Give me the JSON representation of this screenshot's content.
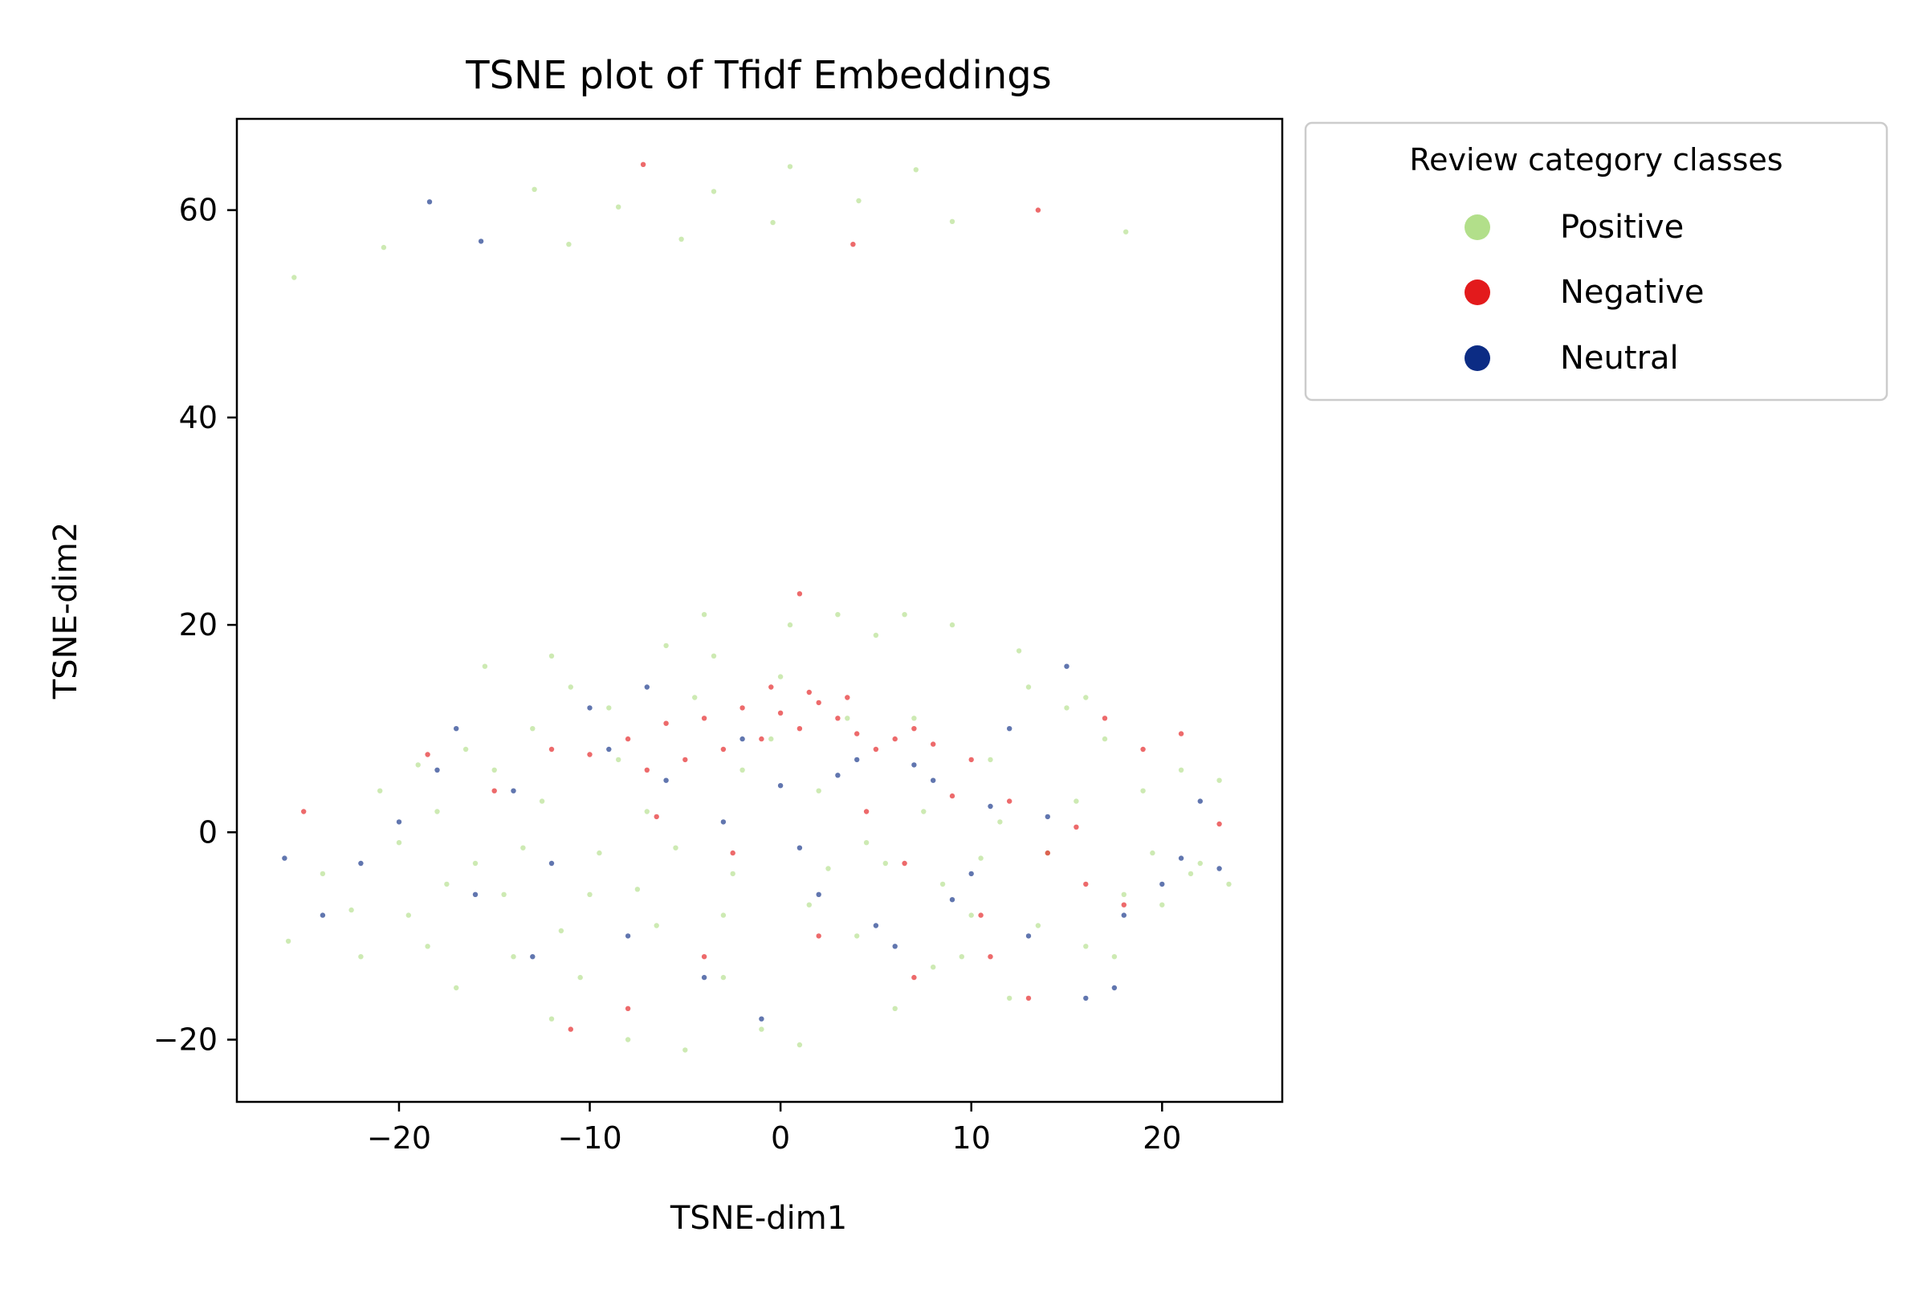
{
  "chart_data": {
    "type": "scatter",
    "title": "TSNE plot of Tfidf Embeddings",
    "xlabel": "TSNE-dim1",
    "ylabel": "TSNE-dim2",
    "xlim": [
      -28.5,
      26.3
    ],
    "ylim": [
      -26.0,
      68.8
    ],
    "x_ticks": [
      {
        "value": -20,
        "label": "−20"
      },
      {
        "value": -10,
        "label": "−10"
      },
      {
        "value": 0,
        "label": "0"
      },
      {
        "value": 10,
        "label": "10"
      },
      {
        "value": 20,
        "label": "20"
      }
    ],
    "y_ticks": [
      {
        "value": -20,
        "label": "−20"
      },
      {
        "value": 0,
        "label": "0"
      },
      {
        "value": 20,
        "label": "20"
      },
      {
        "value": 40,
        "label": "40"
      },
      {
        "value": 60,
        "label": "60"
      }
    ],
    "grid": false,
    "legend": {
      "title": "Review category classes",
      "position": "outside-upper-right"
    },
    "series": [
      {
        "name": "Positive",
        "color": "#b2df8a",
        "points": [
          [
            -25.5,
            53.5
          ],
          [
            -20.8,
            56.4
          ],
          [
            -12.9,
            62.0
          ],
          [
            -11.1,
            56.7
          ],
          [
            -8.5,
            60.3
          ],
          [
            -5.2,
            57.2
          ],
          [
            -3.5,
            61.8
          ],
          [
            -0.4,
            58.8
          ],
          [
            0.5,
            64.2
          ],
          [
            4.1,
            60.9
          ],
          [
            7.1,
            63.9
          ],
          [
            9.0,
            58.9
          ],
          [
            18.1,
            57.9
          ],
          [
            -25.8,
            -10.5
          ],
          [
            -24.0,
            -4.0
          ],
          [
            -22.0,
            -12.0
          ],
          [
            -21.0,
            4.0
          ],
          [
            -19.5,
            -8.0
          ],
          [
            -18.0,
            2.0
          ],
          [
            -17.0,
            -15.0
          ],
          [
            -16.0,
            -3.0
          ],
          [
            -15.0,
            6.0
          ],
          [
            -14.0,
            -12.0
          ],
          [
            -13.0,
            10.0
          ],
          [
            -12.0,
            -18.0
          ],
          [
            -11.0,
            14.0
          ],
          [
            -10.0,
            -6.0
          ],
          [
            -9.0,
            12.0
          ],
          [
            -8.0,
            -20.0
          ],
          [
            -7.0,
            2.0
          ],
          [
            -6.0,
            18.0
          ],
          [
            -5.0,
            -21.0
          ],
          [
            -4.0,
            21.0
          ],
          [
            -3.0,
            -14.0
          ],
          [
            -2.0,
            6.0
          ],
          [
            -1.0,
            -19.0
          ],
          [
            0.0,
            15.0
          ],
          [
            1.0,
            -20.5
          ],
          [
            2.0,
            4.0
          ],
          [
            3.0,
            21.0
          ],
          [
            4.0,
            -10.0
          ],
          [
            5.0,
            19.0
          ],
          [
            6.0,
            -17.0
          ],
          [
            7.0,
            11.0
          ],
          [
            8.0,
            -13.0
          ],
          [
            9.0,
            20.0
          ],
          [
            10.0,
            -8.0
          ],
          [
            11.0,
            7.0
          ],
          [
            12.0,
            -16.0
          ],
          [
            13.0,
            14.0
          ],
          [
            14.0,
            -2.0
          ],
          [
            15.0,
            12.0
          ],
          [
            16.0,
            -11.0
          ],
          [
            17.0,
            9.0
          ],
          [
            18.0,
            -6.0
          ],
          [
            19.0,
            4.0
          ],
          [
            20.0,
            -7.0
          ],
          [
            21.0,
            6.0
          ],
          [
            22.0,
            -3.0
          ],
          [
            23.0,
            5.0
          ],
          [
            23.5,
            -5.0
          ],
          [
            -22.5,
            -7.5
          ],
          [
            -20.0,
            -1.0
          ],
          [
            -18.5,
            -11.0
          ],
          [
            -16.5,
            8.0
          ],
          [
            -14.5,
            -6.0
          ],
          [
            -12.5,
            3.0
          ],
          [
            -10.5,
            -14.0
          ],
          [
            -8.5,
            7.0
          ],
          [
            -6.5,
            -9.0
          ],
          [
            -4.5,
            13.0
          ],
          [
            -2.5,
            -4.0
          ],
          [
            -0.5,
            9.0
          ],
          [
            1.5,
            -7.0
          ],
          [
            3.5,
            11.0
          ],
          [
            5.5,
            -3.0
          ],
          [
            7.5,
            2.0
          ],
          [
            9.5,
            -12.0
          ],
          [
            11.5,
            1.0
          ],
          [
            13.5,
            -9.0
          ],
          [
            15.5,
            3.0
          ],
          [
            17.5,
            -12.0
          ],
          [
            19.5,
            -2.0
          ],
          [
            21.5,
            -4.0
          ],
          [
            -15.5,
            16.0
          ],
          [
            -12.0,
            17.0
          ],
          [
            0.5,
            20.0
          ],
          [
            6.5,
            21.0
          ],
          [
            12.5,
            17.5
          ],
          [
            16.0,
            13.0
          ],
          [
            -3.5,
            17.0
          ],
          [
            -9.5,
            -2.0
          ],
          [
            -7.5,
            -5.5
          ],
          [
            -5.5,
            -1.5
          ],
          [
            -3.0,
            -8.0
          ],
          [
            2.5,
            -3.5
          ],
          [
            4.5,
            -1.0
          ],
          [
            8.5,
            -5.0
          ],
          [
            10.5,
            -2.5
          ],
          [
            -11.5,
            -9.5
          ],
          [
            -13.5,
            -1.5
          ],
          [
            -17.5,
            -5.0
          ],
          [
            -19.0,
            6.5
          ]
        ]
      },
      {
        "name": "Negative",
        "color": "#e31a1c",
        "points": [
          [
            -7.2,
            64.4
          ],
          [
            3.8,
            56.7
          ],
          [
            13.5,
            60.0
          ],
          [
            1.0,
            23.0
          ],
          [
            -12.0,
            8.0
          ],
          [
            -10.0,
            7.5
          ],
          [
            -8.0,
            9.0
          ],
          [
            -6.0,
            10.5
          ],
          [
            -4.0,
            11.0
          ],
          [
            -2.0,
            12.0
          ],
          [
            0.0,
            11.5
          ],
          [
            1.0,
            10.0
          ],
          [
            2.0,
            12.5
          ],
          [
            3.0,
            11.0
          ],
          [
            4.0,
            9.5
          ],
          [
            5.0,
            8.0
          ],
          [
            6.0,
            9.0
          ],
          [
            7.0,
            10.0
          ],
          [
            8.0,
            8.5
          ],
          [
            10.0,
            7.0
          ],
          [
            -1.0,
            9.0
          ],
          [
            -3.0,
            8.0
          ],
          [
            -5.0,
            7.0
          ],
          [
            1.5,
            13.5
          ],
          [
            -0.5,
            14.0
          ],
          [
            3.5,
            13.0
          ],
          [
            -7.0,
            6.0
          ],
          [
            12.0,
            3.0
          ],
          [
            14.0,
            -2.0
          ],
          [
            16.0,
            -5.0
          ],
          [
            18.0,
            -7.0
          ],
          [
            -11.0,
            -19.0
          ],
          [
            -8.0,
            -17.0
          ],
          [
            -4.0,
            -12.0
          ],
          [
            2.0,
            -10.0
          ],
          [
            7.0,
            -14.0
          ],
          [
            11.0,
            -12.0
          ],
          [
            13.0,
            -16.0
          ],
          [
            -15.0,
            4.0
          ],
          [
            -18.5,
            7.5
          ],
          [
            -25.0,
            2.0
          ],
          [
            21.0,
            9.5
          ],
          [
            23.0,
            0.8
          ],
          [
            15.5,
            0.5
          ],
          [
            9.0,
            3.5
          ],
          [
            -2.5,
            -2.0
          ],
          [
            4.5,
            2.0
          ],
          [
            6.5,
            -3.0
          ],
          [
            -6.5,
            1.5
          ],
          [
            10.5,
            -8.0
          ],
          [
            17.0,
            11.0
          ],
          [
            19.0,
            8.0
          ]
        ]
      },
      {
        "name": "Neutral",
        "color": "#0c2c84",
        "points": [
          [
            -18.4,
            60.8
          ],
          [
            -15.7,
            57.0
          ],
          [
            -26.0,
            -2.5
          ],
          [
            -24.0,
            -8.0
          ],
          [
            -22.0,
            -3.0
          ],
          [
            -20.0,
            1.0
          ],
          [
            -18.0,
            6.0
          ],
          [
            -16.0,
            -6.0
          ],
          [
            -14.0,
            4.0
          ],
          [
            -12.0,
            -3.0
          ],
          [
            -10.0,
            12.0
          ],
          [
            -8.0,
            -10.0
          ],
          [
            -6.0,
            5.0
          ],
          [
            -4.0,
            -14.0
          ],
          [
            -2.0,
            9.0
          ],
          [
            0.0,
            4.5
          ],
          [
            2.0,
            -6.0
          ],
          [
            4.0,
            7.0
          ],
          [
            6.0,
            -11.0
          ],
          [
            8.0,
            5.0
          ],
          [
            10.0,
            -4.0
          ],
          [
            12.0,
            10.0
          ],
          [
            14.0,
            1.5
          ],
          [
            16.0,
            -16.0
          ],
          [
            18.0,
            -8.0
          ],
          [
            20.0,
            -5.0
          ],
          [
            22.0,
            3.0
          ],
          [
            23.0,
            -3.5
          ],
          [
            -7.0,
            14.0
          ],
          [
            -3.0,
            1.0
          ],
          [
            1.0,
            -1.5
          ],
          [
            3.0,
            5.5
          ],
          [
            5.0,
            -9.0
          ],
          [
            7.0,
            6.5
          ],
          [
            9.0,
            -6.5
          ],
          [
            11.0,
            2.5
          ],
          [
            13.0,
            -10.0
          ],
          [
            15.0,
            16.0
          ],
          [
            -1.0,
            -18.0
          ],
          [
            -9.0,
            8.0
          ],
          [
            -13.0,
            -12.0
          ],
          [
            -17.0,
            10.0
          ],
          [
            17.5,
            -15.0
          ],
          [
            21.0,
            -2.5
          ]
        ]
      }
    ]
  }
}
